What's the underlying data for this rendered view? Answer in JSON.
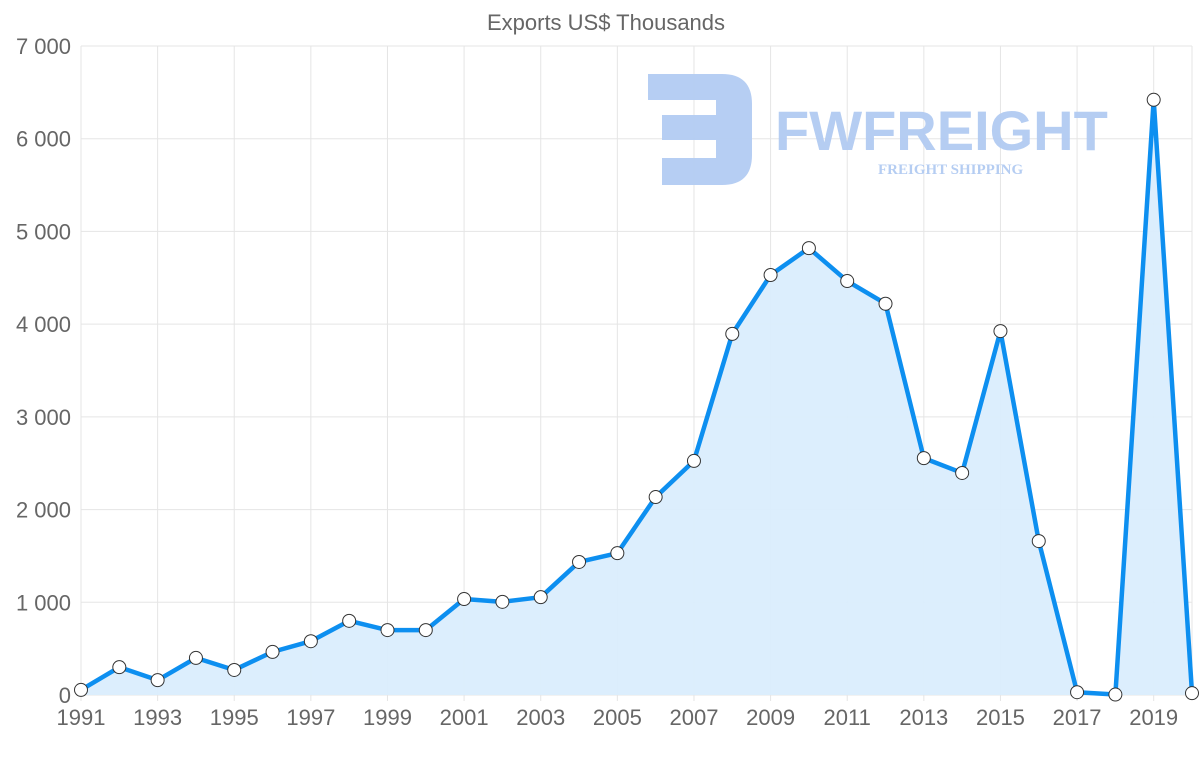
{
  "chart_data": {
    "type": "area",
    "title": "Exports US$ Thousands",
    "xlabel": "",
    "ylabel": "",
    "x": [
      1991,
      1992,
      1993,
      1994,
      1995,
      1996,
      1997,
      1998,
      1999,
      2000,
      2001,
      2002,
      2003,
      2004,
      2005,
      2006,
      2007,
      2008,
      2009,
      2010,
      2011,
      2012,
      2013,
      2014,
      2015,
      2016,
      2017,
      2018,
      2019,
      2020
    ],
    "series": [
      {
        "name": "Exports US$ Thousands",
        "values": [
          55,
          300,
          160,
          400,
          270,
          465,
          580,
          800,
          700,
          700,
          1035,
          1005,
          1055,
          1435,
          1530,
          2135,
          2525,
          3895,
          4530,
          4820,
          4465,
          4220,
          2555,
          2395,
          3925,
          1660,
          30,
          5,
          6420,
          20
        ]
      }
    ],
    "ylim": [
      0,
      7000
    ],
    "yticks": [
      "0",
      "1 000",
      "2 000",
      "3 000",
      "4 000",
      "5 000",
      "6 000",
      "7 000"
    ],
    "xticks": [
      "1991",
      "1993",
      "1995",
      "1997",
      "1999",
      "2001",
      "2003",
      "2005",
      "2007",
      "2009",
      "2011",
      "2013",
      "2015",
      "2017",
      "2019"
    ],
    "grid": true,
    "legend": "none",
    "colors": {
      "line": "#0d8ff0",
      "fill": "#daedfd",
      "grid": "#e5e5e5",
      "watermark": "#b2cbf2"
    }
  },
  "watermark": {
    "brand": "FWFREIGHT",
    "tagline": "FREIGHT SHIPPING"
  }
}
